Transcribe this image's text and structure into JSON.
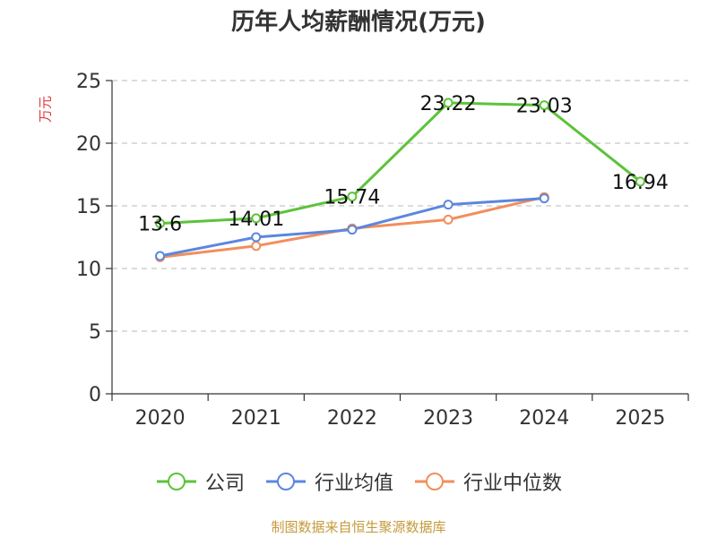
{
  "chart_data": {
    "type": "line",
    "title": "历年人均薪酬情况(万元)",
    "ylabel": "万元",
    "xlabel": "",
    "categories": [
      "2020",
      "2021",
      "2022",
      "2023",
      "2024",
      "2025"
    ],
    "ylim": [
      0,
      25
    ],
    "yticks": [
      0,
      5,
      10,
      15,
      20,
      25
    ],
    "grid": true,
    "legend_position": "bottom",
    "series": [
      {
        "name": "公司",
        "color": "#5cc33a",
        "values": [
          13.6,
          14.01,
          15.74,
          23.22,
          23.03,
          16.94
        ],
        "labels": [
          "13.6",
          "14.01",
          "15.74",
          "23.22",
          "23.03",
          "16.94"
        ]
      },
      {
        "name": "行业均值",
        "color": "#5b87de",
        "values": [
          11.0,
          12.5,
          13.1,
          15.1,
          15.6,
          null
        ]
      },
      {
        "name": "行业中位数",
        "color": "#f28e5c",
        "values": [
          10.9,
          11.8,
          13.2,
          13.9,
          15.7,
          null
        ]
      }
    ]
  },
  "source": "制图数据来自恒生聚源数据库"
}
